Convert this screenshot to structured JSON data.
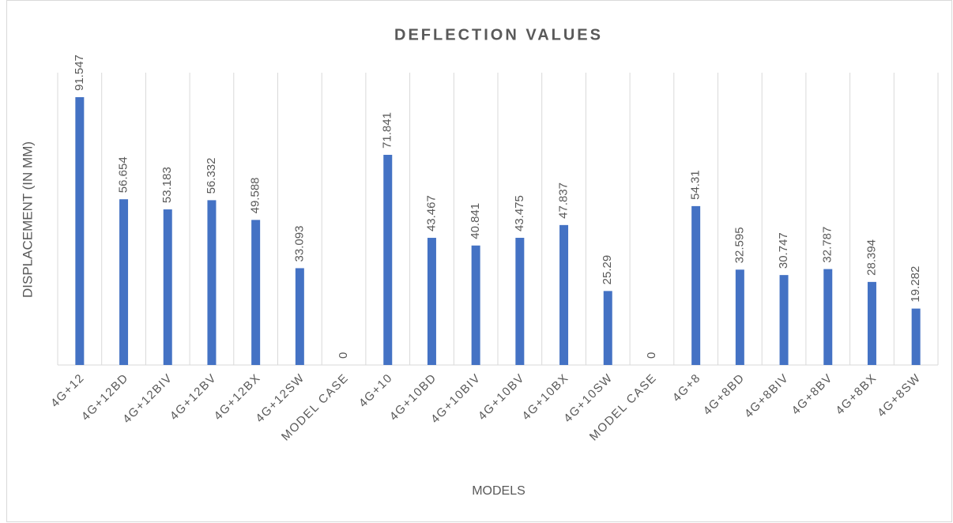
{
  "chart_data": {
    "type": "bar",
    "title": "DEFLECTION VALUES",
    "x_label": "MODELS",
    "y_label": "DISPLACEMENT (IN MM)",
    "categories": [
      "4G+12",
      "4G+12BD",
      "4G+12BIV",
      "4G+12BV",
      "4G+12BX",
      "4G+12SW",
      "MODEL CASE",
      "4G+10",
      "4G+10BD",
      "4G+10BIV",
      "4G+10BV",
      "4G+10BX",
      "4G+10SW",
      "MODEL CASE",
      "4G+8",
      "4G+8BD",
      "4G+8BIV",
      "4G+8BV",
      "4G+8BX",
      "4G+8SW"
    ],
    "values": [
      91.547,
      56.654,
      53.183,
      56.332,
      49.588,
      33.093,
      0,
      71.841,
      43.467,
      40.841,
      43.475,
      47.837,
      25.29,
      0,
      54.31,
      32.595,
      30.747,
      32.787,
      28.394,
      19.282
    ],
    "color": "#4472c4"
  }
}
